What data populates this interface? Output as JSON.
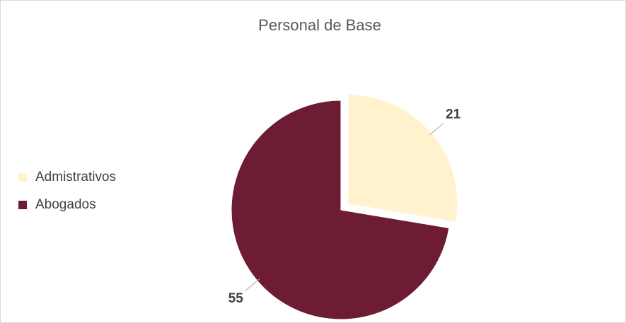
{
  "chart_data": {
    "type": "pie",
    "title": "Personal  de Base",
    "categories": [
      "Admistrativos",
      "Abogados"
    ],
    "values": [
      21,
      55
    ],
    "colors": [
      "#FFF2CC",
      "#6E1C33"
    ],
    "exploded": [
      true,
      false
    ],
    "legend": "left"
  }
}
